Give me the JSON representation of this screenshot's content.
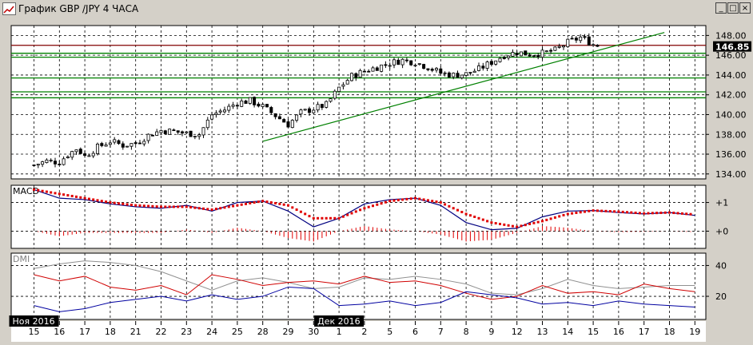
{
  "window": {
    "title": "График GBP /JPY  4 ЧАСА",
    "controls": [
      "_",
      "□",
      "×"
    ]
  },
  "chart_data": [
    {
      "type": "candlestick",
      "title": "График GBP /JPY  4 ЧАСА",
      "ylim": [
        133.5,
        149.0
      ],
      "yticks": [
        134.0,
        136.0,
        138.0,
        140.0,
        142.0,
        144.0,
        146.0,
        148.0
      ],
      "current_price": "146.85",
      "grid": true,
      "x_day_labels": [
        "15",
        "16",
        "17",
        "18",
        "21",
        "22",
        "23",
        "24",
        "25",
        "28",
        "29",
        "30",
        "1",
        "2",
        "5",
        "6",
        "7",
        "8",
        "9",
        "12",
        "13",
        "14",
        "15",
        "16",
        "17",
        "18",
        "19"
      ],
      "month_labels": [
        {
          "label": "Ноя 2016",
          "day_index": 0
        },
        {
          "label": "Дек 2016",
          "day_index": 12
        }
      ],
      "close_path": [
        {
          "day": 0.0,
          "price": 134.9
        },
        {
          "day": 0.5,
          "price": 135.3
        },
        {
          "day": 1.0,
          "price": 135.2
        },
        {
          "day": 1.3,
          "price": 135.9
        },
        {
          "day": 1.7,
          "price": 136.6
        },
        {
          "day": 2.0,
          "price": 135.8
        },
        {
          "day": 2.5,
          "price": 136.7
        },
        {
          "day": 3.0,
          "price": 137.3
        },
        {
          "day": 3.5,
          "price": 136.9
        },
        {
          "day": 4.0,
          "price": 137.1
        },
        {
          "day": 4.5,
          "price": 137.9
        },
        {
          "day": 5.0,
          "price": 138.4
        },
        {
          "day": 5.5,
          "price": 138.3
        },
        {
          "day": 6.0,
          "price": 138.1
        },
        {
          "day": 6.5,
          "price": 138.0
        },
        {
          "day": 7.0,
          "price": 140.0
        },
        {
          "day": 7.5,
          "price": 140.5
        },
        {
          "day": 8.0,
          "price": 141.2
        },
        {
          "day": 8.5,
          "price": 141.4
        },
        {
          "day": 9.0,
          "price": 140.8
        },
        {
          "day": 9.5,
          "price": 139.9
        },
        {
          "day": 10.0,
          "price": 139.0
        },
        {
          "day": 10.5,
          "price": 140.2
        },
        {
          "day": 11.0,
          "price": 140.6
        },
        {
          "day": 11.5,
          "price": 141.0
        },
        {
          "day": 12.0,
          "price": 142.7
        },
        {
          "day": 12.5,
          "price": 143.9
        },
        {
          "day": 13.0,
          "price": 144.4
        },
        {
          "day": 13.5,
          "price": 144.8
        },
        {
          "day": 14.0,
          "price": 145.2
        },
        {
          "day": 14.5,
          "price": 145.5
        },
        {
          "day": 15.0,
          "price": 145.3
        },
        {
          "day": 15.5,
          "price": 144.8
        },
        {
          "day": 16.0,
          "price": 144.2
        },
        {
          "day": 16.5,
          "price": 144.0
        },
        {
          "day": 17.0,
          "price": 144.1
        },
        {
          "day": 17.5,
          "price": 144.6
        },
        {
          "day": 18.0,
          "price": 145.3
        },
        {
          "day": 18.5,
          "price": 146.0
        },
        {
          "day": 19.0,
          "price": 146.3
        },
        {
          "day": 19.5,
          "price": 146.1
        },
        {
          "day": 20.0,
          "price": 146.2
        },
        {
          "day": 20.5,
          "price": 146.5
        },
        {
          "day": 21.0,
          "price": 147.3
        },
        {
          "day": 21.5,
          "price": 147.8
        },
        {
          "day": 22.0,
          "price": 147.1
        },
        {
          "day": 22.3,
          "price": 146.9
        }
      ],
      "horizontal_levels": [
        {
          "price": 147.0,
          "color": "#800000"
        },
        {
          "price": 146.2,
          "color": "#008000"
        },
        {
          "price": 145.8,
          "color": "#008000"
        },
        {
          "price": 143.7,
          "color": "#008000"
        },
        {
          "price": 142.3,
          "color": "#008000"
        },
        {
          "price": 141.7,
          "color": "#008000"
        }
      ],
      "trendline": {
        "day_start": 9.0,
        "price_start": 137.3,
        "day_end": 24.8,
        "price_end": 148.3,
        "color": "#008000"
      }
    },
    {
      "type": "line",
      "title": "MACD",
      "ylim": [
        -0.6,
        1.6
      ],
      "yticks": [
        0,
        1
      ],
      "ytick_labels": [
        "+0",
        "+1"
      ],
      "macd_line": [
        1.45,
        1.15,
        1.1,
        0.95,
        0.85,
        0.8,
        0.9,
        0.7,
        1.0,
        1.05,
        0.7,
        0.15,
        0.45,
        0.95,
        1.1,
        1.15,
        0.9,
        0.3,
        0.05,
        0.1,
        0.5,
        0.7,
        0.72,
        0.65,
        0.6,
        0.65,
        0.55
      ],
      "signal_line": [
        1.45,
        1.3,
        1.15,
        1.0,
        0.9,
        0.85,
        0.85,
        0.75,
        0.9,
        1.05,
        0.9,
        0.45,
        0.45,
        0.8,
        1.05,
        1.15,
        1.0,
        0.6,
        0.3,
        0.15,
        0.35,
        0.6,
        0.72,
        0.68,
        0.62,
        0.65,
        0.58
      ],
      "colors": {
        "macd": "#000080",
        "signal": "#e00000"
      }
    },
    {
      "type": "line",
      "title": "DMI",
      "ylim": [
        5,
        48
      ],
      "yticks": [
        20,
        40
      ],
      "ytick_labels": [
        "20",
        "40"
      ],
      "series": [
        {
          "name": "",
          "color": "#909090",
          "values": [
            38,
            41,
            43,
            42,
            40,
            36,
            30,
            24,
            30,
            32,
            29,
            25,
            26,
            32,
            31,
            33,
            31,
            28,
            22,
            21,
            25,
            31,
            27,
            25,
            26,
            27,
            27
          ]
        },
        {
          "name": "",
          "color": "#d00000",
          "values": [
            34,
            30,
            33,
            26,
            24,
            27,
            21,
            34,
            31,
            27,
            29,
            30,
            28,
            33,
            29,
            30,
            27,
            22,
            18,
            20,
            27,
            22,
            23,
            21,
            28,
            25,
            23
          ]
        },
        {
          "name": "",
          "color": "#0000a0",
          "values": [
            14,
            10,
            12,
            16,
            18,
            20,
            17,
            21,
            18,
            20,
            26,
            25,
            14,
            15,
            17,
            14,
            16,
            23,
            21,
            19,
            15,
            16,
            14,
            17,
            15,
            14,
            13
          ]
        }
      ]
    }
  ]
}
